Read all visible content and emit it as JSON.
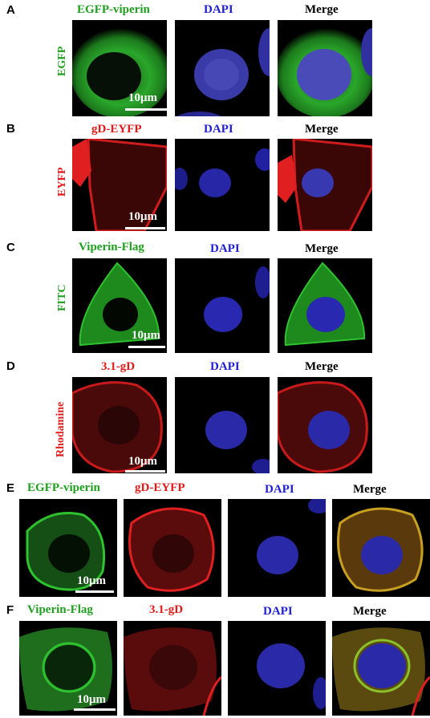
{
  "panels": {
    "A": {
      "letter": "A",
      "row_label": "EGFP",
      "headers": [
        "EGFP-viperin",
        "DAPI",
        "Merge"
      ],
      "scale_bar": "10μm"
    },
    "B": {
      "letter": "B",
      "row_label": "EYFP",
      "headers": [
        "gD-EYFP",
        "DAPI",
        "Merge"
      ],
      "scale_bar": "10μm"
    },
    "C": {
      "letter": "C",
      "row_label": "FITC",
      "headers": [
        "Viperin-Flag",
        "DAPI",
        "Merge"
      ],
      "scale_bar": "10μm"
    },
    "D": {
      "letter": "D",
      "row_label": "Rhodamine",
      "headers": [
        "3.1-gD",
        "DAPI",
        "Merge"
      ],
      "scale_bar": "10μm"
    },
    "E": {
      "letter": "E",
      "headers": [
        "EGFP-viperin",
        "gD-EYFP",
        "DAPI",
        "Merge"
      ],
      "scale_bar": "10μm"
    },
    "F": {
      "letter": "F",
      "headers": [
        "Viperin-Flag",
        "3.1-gD",
        "DAPI",
        "Merge"
      ],
      "scale_bar": "10μm"
    }
  },
  "colors": {
    "green_label": "#1fa01f",
    "red_label": "#e41a1a",
    "blue_label": "#1f1fd6",
    "black_label": "#000000",
    "green_signal": "#2ec22e",
    "red_signal": "#e02020",
    "blue_signal": "#3030d0",
    "panel_background": "#000000"
  }
}
